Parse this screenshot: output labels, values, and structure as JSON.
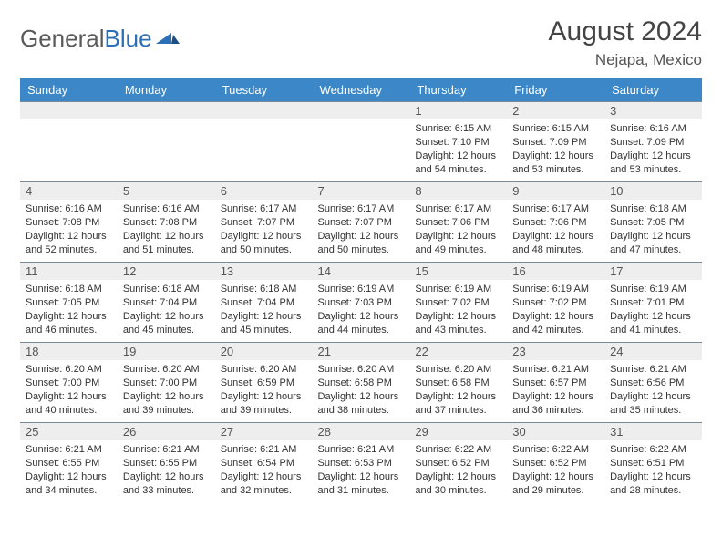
{
  "logo": {
    "word1": "General",
    "word2": "Blue"
  },
  "title": "August 2024",
  "location": "Nejapa, Mexico",
  "colors": {
    "header_bg": "#3b87c8",
    "header_text": "#ffffff",
    "daybar_bg": "#eeeeee",
    "daybar_border": "#7a8a9a",
    "text": "#333333",
    "logo_gray": "#5a5a5a",
    "logo_blue": "#2d6fb5",
    "page_bg": "#ffffff"
  },
  "weekdays": [
    "Sunday",
    "Monday",
    "Tuesday",
    "Wednesday",
    "Thursday",
    "Friday",
    "Saturday"
  ],
  "layout": {
    "start_weekday_index": 4,
    "days_in_month": 31,
    "columns": 7,
    "rows": 5
  },
  "days": {
    "1": {
      "sunrise": "6:15 AM",
      "sunset": "7:10 PM",
      "daylight": "12 hours and 54 minutes."
    },
    "2": {
      "sunrise": "6:15 AM",
      "sunset": "7:09 PM",
      "daylight": "12 hours and 53 minutes."
    },
    "3": {
      "sunrise": "6:16 AM",
      "sunset": "7:09 PM",
      "daylight": "12 hours and 53 minutes."
    },
    "4": {
      "sunrise": "6:16 AM",
      "sunset": "7:08 PM",
      "daylight": "12 hours and 52 minutes."
    },
    "5": {
      "sunrise": "6:16 AM",
      "sunset": "7:08 PM",
      "daylight": "12 hours and 51 minutes."
    },
    "6": {
      "sunrise": "6:17 AM",
      "sunset": "7:07 PM",
      "daylight": "12 hours and 50 minutes."
    },
    "7": {
      "sunrise": "6:17 AM",
      "sunset": "7:07 PM",
      "daylight": "12 hours and 50 minutes."
    },
    "8": {
      "sunrise": "6:17 AM",
      "sunset": "7:06 PM",
      "daylight": "12 hours and 49 minutes."
    },
    "9": {
      "sunrise": "6:17 AM",
      "sunset": "7:06 PM",
      "daylight": "12 hours and 48 minutes."
    },
    "10": {
      "sunrise": "6:18 AM",
      "sunset": "7:05 PM",
      "daylight": "12 hours and 47 minutes."
    },
    "11": {
      "sunrise": "6:18 AM",
      "sunset": "7:05 PM",
      "daylight": "12 hours and 46 minutes."
    },
    "12": {
      "sunrise": "6:18 AM",
      "sunset": "7:04 PM",
      "daylight": "12 hours and 45 minutes."
    },
    "13": {
      "sunrise": "6:18 AM",
      "sunset": "7:04 PM",
      "daylight": "12 hours and 45 minutes."
    },
    "14": {
      "sunrise": "6:19 AM",
      "sunset": "7:03 PM",
      "daylight": "12 hours and 44 minutes."
    },
    "15": {
      "sunrise": "6:19 AM",
      "sunset": "7:02 PM",
      "daylight": "12 hours and 43 minutes."
    },
    "16": {
      "sunrise": "6:19 AM",
      "sunset": "7:02 PM",
      "daylight": "12 hours and 42 minutes."
    },
    "17": {
      "sunrise": "6:19 AM",
      "sunset": "7:01 PM",
      "daylight": "12 hours and 41 minutes."
    },
    "18": {
      "sunrise": "6:20 AM",
      "sunset": "7:00 PM",
      "daylight": "12 hours and 40 minutes."
    },
    "19": {
      "sunrise": "6:20 AM",
      "sunset": "7:00 PM",
      "daylight": "12 hours and 39 minutes."
    },
    "20": {
      "sunrise": "6:20 AM",
      "sunset": "6:59 PM",
      "daylight": "12 hours and 39 minutes."
    },
    "21": {
      "sunrise": "6:20 AM",
      "sunset": "6:58 PM",
      "daylight": "12 hours and 38 minutes."
    },
    "22": {
      "sunrise": "6:20 AM",
      "sunset": "6:58 PM",
      "daylight": "12 hours and 37 minutes."
    },
    "23": {
      "sunrise": "6:21 AM",
      "sunset": "6:57 PM",
      "daylight": "12 hours and 36 minutes."
    },
    "24": {
      "sunrise": "6:21 AM",
      "sunset": "6:56 PM",
      "daylight": "12 hours and 35 minutes."
    },
    "25": {
      "sunrise": "6:21 AM",
      "sunset": "6:55 PM",
      "daylight": "12 hours and 34 minutes."
    },
    "26": {
      "sunrise": "6:21 AM",
      "sunset": "6:55 PM",
      "daylight": "12 hours and 33 minutes."
    },
    "27": {
      "sunrise": "6:21 AM",
      "sunset": "6:54 PM",
      "daylight": "12 hours and 32 minutes."
    },
    "28": {
      "sunrise": "6:21 AM",
      "sunset": "6:53 PM",
      "daylight": "12 hours and 31 minutes."
    },
    "29": {
      "sunrise": "6:22 AM",
      "sunset": "6:52 PM",
      "daylight": "12 hours and 30 minutes."
    },
    "30": {
      "sunrise": "6:22 AM",
      "sunset": "6:52 PM",
      "daylight": "12 hours and 29 minutes."
    },
    "31": {
      "sunrise": "6:22 AM",
      "sunset": "6:51 PM",
      "daylight": "12 hours and 28 minutes."
    }
  },
  "labels": {
    "sunrise_prefix": "Sunrise: ",
    "sunset_prefix": "Sunset: ",
    "daylight_prefix": "Daylight: "
  }
}
